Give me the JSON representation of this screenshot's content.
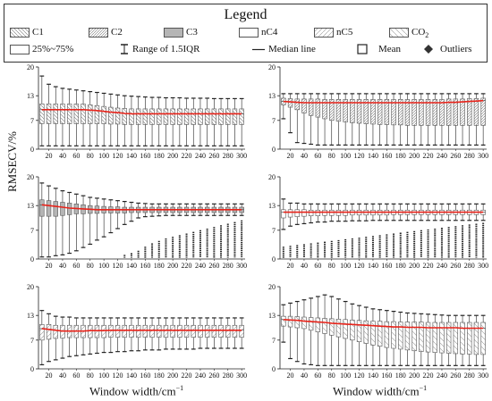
{
  "legend": {
    "title": "Legend",
    "items": [
      {
        "label": "C1",
        "pattern": "hatch-back"
      },
      {
        "label": "C2",
        "pattern": "hatch-fwd-dense"
      },
      {
        "label": "C3",
        "pattern": "gray"
      },
      {
        "label": "nC4",
        "pattern": "white"
      },
      {
        "label": "nC5",
        "pattern": "hatch-fwd"
      },
      {
        "label": "CO",
        "sub": "2",
        "pattern": "hatch-back-sparse"
      }
    ],
    "box_label": "25%~75%",
    "iqr_label": "Range of 1.5IQR",
    "median_label": "Median line",
    "mean_label": "Mean",
    "outlier_label": "Outliers"
  },
  "ylabel": "RMSECV/%",
  "xlabel": "Window width/cm",
  "xlabel_sup": "−1",
  "colors": {
    "median": "#e8231a",
    "box_edge": "#555555",
    "gray_fill": "#b5b5b5",
    "whisker": "#222222"
  },
  "chart_data": [
    {
      "panel": "C1",
      "type": "box",
      "pattern": "hatch-back",
      "x": [
        10,
        20,
        30,
        40,
        50,
        60,
        70,
        80,
        90,
        100,
        110,
        120,
        130,
        140,
        150,
        160,
        170,
        180,
        190,
        200,
        210,
        220,
        230,
        240,
        250,
        260,
        270,
        280,
        290,
        300
      ],
      "x_ticks": [
        20,
        40,
        60,
        80,
        100,
        120,
        140,
        160,
        180,
        200,
        220,
        240,
        260,
        280,
        300
      ],
      "y_ticks": [
        0,
        7,
        13,
        20
      ],
      "ylim": [
        0,
        20
      ],
      "median": [
        9.6,
        9.6,
        9.6,
        9.6,
        9.6,
        9.6,
        9.6,
        9.5,
        9.4,
        9.2,
        9.0,
        8.9,
        8.7,
        8.6,
        8.6,
        8.6,
        8.6,
        8.6,
        8.6,
        8.6,
        8.6,
        8.6,
        8.6,
        8.6,
        8.6,
        8.6,
        8.6,
        8.6,
        8.6,
        8.6
      ],
      "q1": [
        6.2,
        6.2,
        6.2,
        6.2,
        6.2,
        6.2,
        6.2,
        6.2,
        6.2,
        6.2,
        6.1,
        6.1,
        6.0,
        6.0,
        6.0,
        6.0,
        6.0,
        6.0,
        6.0,
        6.0,
        6.0,
        6.0,
        6.0,
        6.0,
        6.0,
        6.0,
        6.0,
        6.0,
        6.0,
        6.0
      ],
      "q3": [
        11.0,
        11.0,
        11.0,
        11.0,
        11.0,
        11.0,
        11.0,
        10.8,
        10.6,
        10.4,
        10.2,
        10.0,
        9.9,
        9.8,
        9.8,
        9.8,
        9.8,
        9.8,
        9.8,
        9.8,
        9.8,
        9.8,
        9.8,
        9.8,
        9.8,
        9.8,
        9.8,
        9.8,
        9.8,
        9.8
      ],
      "whisker_low": [
        0.8,
        0.8,
        0.8,
        0.8,
        0.8,
        0.8,
        0.8,
        0.8,
        0.8,
        0.8,
        0.8,
        0.8,
        0.8,
        0.8,
        0.8,
        0.8,
        0.8,
        0.8,
        0.8,
        0.8,
        0.8,
        0.8,
        0.8,
        0.8,
        0.8,
        0.8,
        0.8,
        0.8,
        0.8,
        0.8
      ],
      "whisker_high": [
        17.8,
        15.8,
        15.2,
        14.8,
        14.6,
        14.4,
        14.2,
        14.0,
        13.8,
        13.6,
        13.4,
        13.2,
        13.0,
        12.9,
        12.8,
        12.7,
        12.6,
        12.6,
        12.5,
        12.5,
        12.5,
        12.4,
        12.4,
        12.4,
        12.4,
        12.3,
        12.3,
        12.3,
        12.3,
        12.3
      ]
    },
    {
      "panel": "C2",
      "type": "box",
      "pattern": "hatch-fwd-dense",
      "x": [
        10,
        20,
        30,
        40,
        50,
        60,
        70,
        80,
        90,
        100,
        110,
        120,
        130,
        140,
        150,
        160,
        170,
        180,
        190,
        200,
        210,
        220,
        230,
        240,
        250,
        260,
        270,
        280,
        290,
        300
      ],
      "x_ticks": [
        20,
        40,
        60,
        80,
        100,
        120,
        140,
        160,
        180,
        200,
        220,
        240,
        260,
        280,
        300
      ],
      "y_ticks": [
        0,
        7,
        13,
        20
      ],
      "ylim": [
        0,
        20
      ],
      "median": [
        11.6,
        11.5,
        11.4,
        11.3,
        11.3,
        11.3,
        11.3,
        11.3,
        11.3,
        11.3,
        11.3,
        11.3,
        11.3,
        11.3,
        11.3,
        11.3,
        11.3,
        11.3,
        11.3,
        11.3,
        11.3,
        11.3,
        11.3,
        11.3,
        11.4,
        11.4,
        11.5,
        11.6,
        11.7,
        11.8
      ],
      "q1": [
        10.8,
        10.2,
        9.6,
        8.8,
        8.2,
        7.8,
        7.4,
        7.0,
        6.8,
        6.6,
        6.4,
        6.3,
        6.2,
        6.1,
        6.0,
        6.0,
        5.9,
        5.9,
        5.8,
        5.8,
        5.8,
        5.8,
        5.8,
        5.8,
        5.8,
        5.8,
        5.8,
        5.8,
        5.8,
        5.8
      ],
      "q3": [
        12.4,
        12.3,
        12.2,
        12.2,
        12.2,
        12.2,
        12.1,
        12.1,
        12.1,
        12.1,
        12.1,
        12.1,
        12.1,
        12.1,
        12.1,
        12.1,
        12.1,
        12.1,
        12.1,
        12.1,
        12.1,
        12.1,
        12.1,
        12.1,
        12.2,
        12.2,
        12.2,
        12.3,
        12.3,
        12.4
      ],
      "whisker_low": [
        7.4,
        4.0,
        1.6,
        1.4,
        1.2,
        1.0,
        1.0,
        1.0,
        1.0,
        1.0,
        1.0,
        1.0,
        1.0,
        1.0,
        1.0,
        1.0,
        1.0,
        1.0,
        1.0,
        1.0,
        1.0,
        1.0,
        1.0,
        1.0,
        1.0,
        1.0,
        1.0,
        1.0,
        1.0,
        1.0
      ],
      "whisker_high": [
        13.5,
        13.5,
        13.5,
        13.5,
        13.5,
        13.5,
        13.5,
        13.5,
        13.5,
        13.5,
        13.5,
        13.5,
        13.5,
        13.5,
        13.5,
        13.5,
        13.5,
        13.5,
        13.5,
        13.5,
        13.5,
        13.5,
        13.5,
        13.5,
        13.5,
        13.5,
        13.5,
        13.5,
        13.5,
        13.5
      ]
    },
    {
      "panel": "C3",
      "type": "box",
      "pattern": "gray",
      "x": [
        10,
        20,
        30,
        40,
        50,
        60,
        70,
        80,
        90,
        100,
        110,
        120,
        130,
        140,
        150,
        160,
        170,
        180,
        190,
        200,
        210,
        220,
        230,
        240,
        250,
        260,
        270,
        280,
        290,
        300
      ],
      "x_ticks": [
        20,
        40,
        60,
        80,
        100,
        120,
        140,
        160,
        180,
        200,
        220,
        240,
        260,
        280,
        300
      ],
      "y_ticks": [
        0,
        7,
        13,
        20
      ],
      "ylim": [
        0,
        20
      ],
      "median": [
        13.2,
        13.0,
        12.8,
        12.6,
        12.4,
        12.3,
        12.2,
        12.1,
        12.0,
        12.0,
        12.0,
        12.0,
        12.0,
        12.0,
        12.0,
        12.0,
        12.0,
        12.0,
        12.0,
        12.0,
        12.0,
        12.0,
        12.0,
        12.0,
        12.0,
        12.0,
        12.0,
        12.0,
        12.0,
        12.0
      ],
      "q1": [
        10.4,
        10.4,
        10.4,
        10.6,
        10.8,
        11.0,
        11.0,
        11.1,
        11.1,
        11.2,
        11.2,
        11.2,
        11.2,
        11.3,
        11.3,
        11.3,
        11.3,
        11.3,
        11.3,
        11.3,
        11.3,
        11.3,
        11.3,
        11.3,
        11.3,
        11.3,
        11.3,
        11.3,
        11.3,
        11.3
      ],
      "q3": [
        14.4,
        14.2,
        14.0,
        13.8,
        13.6,
        13.4,
        13.2,
        13.0,
        12.9,
        12.8,
        12.7,
        12.7,
        12.6,
        12.6,
        12.6,
        12.6,
        12.6,
        12.6,
        12.6,
        12.6,
        12.6,
        12.6,
        12.6,
        12.6,
        12.6,
        12.6,
        12.6,
        12.6,
        12.6,
        12.6
      ],
      "whisker_low": [
        0.5,
        0.5,
        0.8,
        1.0,
        1.4,
        2.0,
        2.8,
        3.6,
        4.6,
        5.4,
        6.4,
        7.4,
        8.4,
        9.2,
        10.0,
        10.3,
        10.4,
        10.5,
        10.6,
        10.6,
        10.6,
        10.6,
        10.6,
        10.6,
        10.6,
        10.6,
        10.6,
        10.6,
        10.6,
        10.6
      ],
      "whisker_high": [
        18.5,
        17.8,
        17.2,
        16.6,
        16.2,
        15.8,
        15.4,
        15.0,
        14.8,
        14.6,
        14.4,
        14.2,
        14.0,
        13.8,
        13.6,
        13.5,
        13.4,
        13.4,
        13.4,
        13.4,
        13.4,
        13.4,
        13.4,
        13.4,
        13.4,
        13.4,
        13.4,
        13.4,
        13.4,
        13.4
      ],
      "outliers_low_top": [
        null,
        null,
        null,
        null,
        null,
        null,
        null,
        null,
        null,
        null,
        null,
        null,
        1.0,
        1.4,
        2.0,
        3.0,
        3.8,
        4.4,
        5.0,
        5.4,
        5.8,
        6.2,
        6.6,
        7.0,
        7.4,
        7.8,
        8.2,
        8.6,
        9.0,
        9.4
      ]
    },
    {
      "panel": "nC4",
      "type": "box",
      "pattern": "white",
      "x": [
        10,
        20,
        30,
        40,
        50,
        60,
        70,
        80,
        90,
        100,
        110,
        120,
        130,
        140,
        150,
        160,
        170,
        180,
        190,
        200,
        210,
        220,
        230,
        240,
        250,
        260,
        270,
        280,
        290,
        300
      ],
      "x_ticks": [
        20,
        40,
        60,
        80,
        100,
        120,
        140,
        160,
        180,
        200,
        220,
        240,
        260,
        280,
        300
      ],
      "y_ticks": [
        0,
        7,
        13,
        20
      ],
      "ylim": [
        0,
        20
      ],
      "median": [
        11.4,
        11.4,
        11.4,
        11.4,
        11.4,
        11.4,
        11.4,
        11.4,
        11.4,
        11.4,
        11.4,
        11.4,
        11.4,
        11.4,
        11.4,
        11.4,
        11.4,
        11.4,
        11.4,
        11.4,
        11.4,
        11.4,
        11.4,
        11.4,
        11.4,
        11.4,
        11.4,
        11.4,
        11.4,
        11.4
      ],
      "q1": [
        10.0,
        10.2,
        10.3,
        10.4,
        10.5,
        10.5,
        10.6,
        10.6,
        10.6,
        10.6,
        10.7,
        10.7,
        10.7,
        10.7,
        10.7,
        10.7,
        10.8,
        10.8,
        10.8,
        10.8,
        10.8,
        10.8,
        10.8,
        10.8,
        10.8,
        10.8,
        10.8,
        10.8,
        10.8,
        10.8
      ],
      "q3": [
        12.0,
        12.0,
        12.0,
        12.0,
        11.9,
        11.9,
        11.9,
        11.9,
        11.9,
        11.9,
        11.9,
        11.9,
        11.9,
        11.9,
        11.9,
        11.9,
        11.9,
        11.9,
        11.9,
        11.9,
        11.9,
        11.9,
        11.9,
        11.9,
        11.9,
        11.9,
        11.9,
        11.9,
        11.9,
        11.9
      ],
      "whisker_low": [
        7.2,
        8.0,
        8.4,
        8.6,
        8.8,
        9.0,
        9.0,
        9.2,
        9.2,
        9.2,
        9.3,
        9.3,
        9.3,
        9.4,
        9.4,
        9.4,
        9.4,
        9.4,
        9.4,
        9.4,
        9.4,
        9.4,
        9.4,
        9.4,
        9.4,
        9.4,
        9.4,
        9.4,
        9.4,
        9.4
      ],
      "whisker_high": [
        14.6,
        13.6,
        13.6,
        13.4,
        13.4,
        13.4,
        13.4,
        13.4,
        13.4,
        13.4,
        13.4,
        13.4,
        13.4,
        13.4,
        13.4,
        13.4,
        13.4,
        13.4,
        13.4,
        13.4,
        13.4,
        13.4,
        13.4,
        13.4,
        13.4,
        13.4,
        13.4,
        13.4,
        13.4,
        13.4
      ],
      "outliers_low_top": [
        3.0,
        3.2,
        3.4,
        3.6,
        3.8,
        4.0,
        4.2,
        4.4,
        4.6,
        4.8,
        5.0,
        5.2,
        5.4,
        5.6,
        5.8,
        6.0,
        6.2,
        6.4,
        6.6,
        6.8,
        7.0,
        7.2,
        7.4,
        7.6,
        7.8,
        8.0,
        8.2,
        8.4,
        8.6,
        8.8
      ]
    },
    {
      "panel": "nC5",
      "type": "box",
      "pattern": "hatch-fwd",
      "x": [
        10,
        20,
        30,
        40,
        50,
        60,
        70,
        80,
        90,
        100,
        110,
        120,
        130,
        140,
        150,
        160,
        170,
        180,
        190,
        200,
        210,
        220,
        230,
        240,
        250,
        260,
        270,
        280,
        290,
        300
      ],
      "x_ticks": [
        20,
        40,
        60,
        80,
        100,
        120,
        140,
        160,
        180,
        200,
        220,
        240,
        260,
        280,
        300
      ],
      "y_ticks": [
        0,
        7,
        13,
        20
      ],
      "ylim": [
        0,
        20
      ],
      "median": [
        9.8,
        9.6,
        9.4,
        9.2,
        9.2,
        9.2,
        9.2,
        9.3,
        9.3,
        9.3,
        9.4,
        9.4,
        9.4,
        9.4,
        9.4,
        9.4,
        9.4,
        9.4,
        9.4,
        9.4,
        9.4,
        9.4,
        9.4,
        9.4,
        9.4,
        9.4,
        9.4,
        9.4,
        9.4,
        9.4
      ],
      "q1": [
        7.0,
        7.2,
        7.4,
        7.5,
        7.6,
        7.6,
        7.6,
        7.6,
        7.6,
        7.6,
        7.7,
        7.7,
        7.7,
        7.7,
        7.7,
        7.7,
        7.7,
        7.7,
        7.7,
        7.7,
        7.7,
        7.7,
        7.7,
        7.7,
        7.7,
        7.7,
        7.7,
        7.7,
        7.7,
        7.7
      ],
      "q3": [
        10.8,
        10.8,
        10.6,
        10.6,
        10.6,
        10.6,
        10.6,
        10.6,
        10.6,
        10.6,
        10.6,
        10.6,
        10.6,
        10.6,
        10.6,
        10.6,
        10.6,
        10.6,
        10.6,
        10.6,
        10.6,
        10.6,
        10.6,
        10.6,
        10.6,
        10.6,
        10.6,
        10.6,
        10.6,
        10.6
      ],
      "whisker_low": [
        1.0,
        1.8,
        2.2,
        2.6,
        3.0,
        3.2,
        3.4,
        3.6,
        3.8,
        4.0,
        4.0,
        4.2,
        4.2,
        4.4,
        4.4,
        4.6,
        4.6,
        4.6,
        4.8,
        4.8,
        4.8,
        4.8,
        4.8,
        5.0,
        5.0,
        5.0,
        5.0,
        5.0,
        5.0,
        5.0
      ],
      "whisker_high": [
        14.2,
        13.4,
        12.8,
        12.6,
        12.6,
        12.4,
        12.4,
        12.4,
        12.4,
        12.4,
        12.4,
        12.4,
        12.4,
        12.4,
        12.4,
        12.4,
        12.4,
        12.4,
        12.4,
        12.4,
        12.4,
        12.4,
        12.4,
        12.4,
        12.4,
        12.4,
        12.4,
        12.4,
        12.4,
        12.4
      ]
    },
    {
      "panel": "CO2",
      "type": "box",
      "pattern": "hatch-back-sparse",
      "x": [
        10,
        20,
        30,
        40,
        50,
        60,
        70,
        80,
        90,
        100,
        110,
        120,
        130,
        140,
        150,
        160,
        170,
        180,
        190,
        200,
        210,
        220,
        230,
        240,
        250,
        260,
        270,
        280,
        290,
        300
      ],
      "x_ticks": [
        20,
        40,
        60,
        80,
        100,
        120,
        140,
        160,
        180,
        200,
        220,
        240,
        260,
        280,
        300
      ],
      "y_ticks": [
        0,
        7,
        13,
        20
      ],
      "ylim": [
        0,
        20
      ],
      "median": [
        12.0,
        11.9,
        11.8,
        11.6,
        11.5,
        11.4,
        11.3,
        11.1,
        11.0,
        10.9,
        10.8,
        10.7,
        10.6,
        10.5,
        10.4,
        10.3,
        10.2,
        10.2,
        10.1,
        10.1,
        10.1,
        10.0,
        10.0,
        10.0,
        10.0,
        10.0,
        9.9,
        9.9,
        9.9,
        9.9
      ],
      "q1": [
        10.4,
        10.2,
        10.0,
        9.8,
        9.4,
        9.0,
        8.6,
        8.2,
        7.8,
        7.4,
        7.0,
        6.6,
        6.2,
        5.8,
        5.5,
        5.2,
        5.0,
        4.8,
        4.6,
        4.4,
        4.2,
        4.1,
        4.0,
        3.9,
        3.8,
        3.7,
        3.6,
        3.6,
        3.5,
        3.5
      ],
      "q3": [
        12.8,
        12.8,
        12.7,
        12.6,
        12.5,
        12.4,
        12.3,
        12.2,
        12.1,
        12.0,
        11.9,
        11.8,
        11.7,
        11.6,
        11.6,
        11.5,
        11.5,
        11.4,
        11.4,
        11.4,
        11.4,
        11.3,
        11.3,
        11.3,
        11.3,
        11.3,
        11.3,
        11.3,
        11.3,
        11.3
      ],
      "whisker_low": [
        6.5,
        2.5,
        1.8,
        1.2,
        1.0,
        0.8,
        0.8,
        0.8,
        0.8,
        0.8,
        0.8,
        0.8,
        0.8,
        0.8,
        0.8,
        0.8,
        0.8,
        0.8,
        0.8,
        0.8,
        0.8,
        0.8,
        0.8,
        0.8,
        0.8,
        0.8,
        0.8,
        0.8,
        0.8,
        0.8
      ],
      "whisker_high": [
        15.6,
        16.0,
        16.4,
        16.8,
        17.2,
        17.6,
        18.0,
        17.6,
        17.0,
        16.4,
        15.8,
        15.4,
        15.0,
        14.6,
        14.4,
        14.2,
        14.0,
        13.8,
        13.6,
        13.5,
        13.4,
        13.3,
        13.2,
        13.1,
        13.0,
        13.0,
        13.0,
        13.0,
        13.0,
        13.0
      ]
    }
  ]
}
